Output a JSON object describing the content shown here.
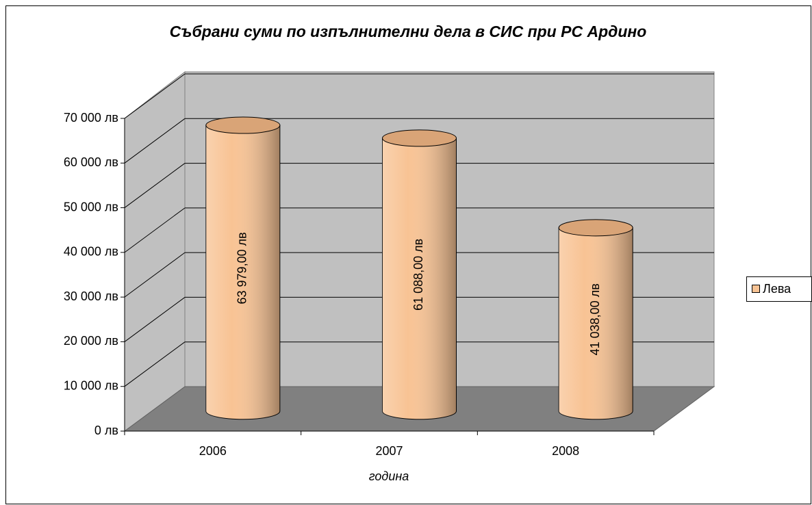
{
  "chart_data": {
    "type": "bar3d-cylinder",
    "title": "Събрани суми по изпълнителни дела в СИС при РС Ардино",
    "x_label": "година",
    "categories": [
      "2006",
      "2007",
      "2008"
    ],
    "series": [
      {
        "name": "Лева",
        "color": "#f8c394",
        "values": [
          63979,
          61088,
          41038
        ],
        "value_labels": [
          "63 979,00 лв",
          "61 088,00 лв",
          "41 038,00 лв"
        ]
      }
    ],
    "ylim": [
      0,
      70000
    ],
    "yticks": [
      {
        "value": 0,
        "label": "0 лв"
      },
      {
        "value": 10000,
        "label": "10 000 лв"
      },
      {
        "value": 20000,
        "label": "20 000 лв"
      },
      {
        "value": 30000,
        "label": "30 000 лв"
      },
      {
        "value": 40000,
        "label": "40 000 лв"
      },
      {
        "value": 50000,
        "label": "50 000 лв"
      },
      {
        "value": 60000,
        "label": "60 000 лв"
      },
      {
        "value": 70000,
        "label": "70 000 лв"
      }
    ],
    "grid": true,
    "legend": "right"
  }
}
